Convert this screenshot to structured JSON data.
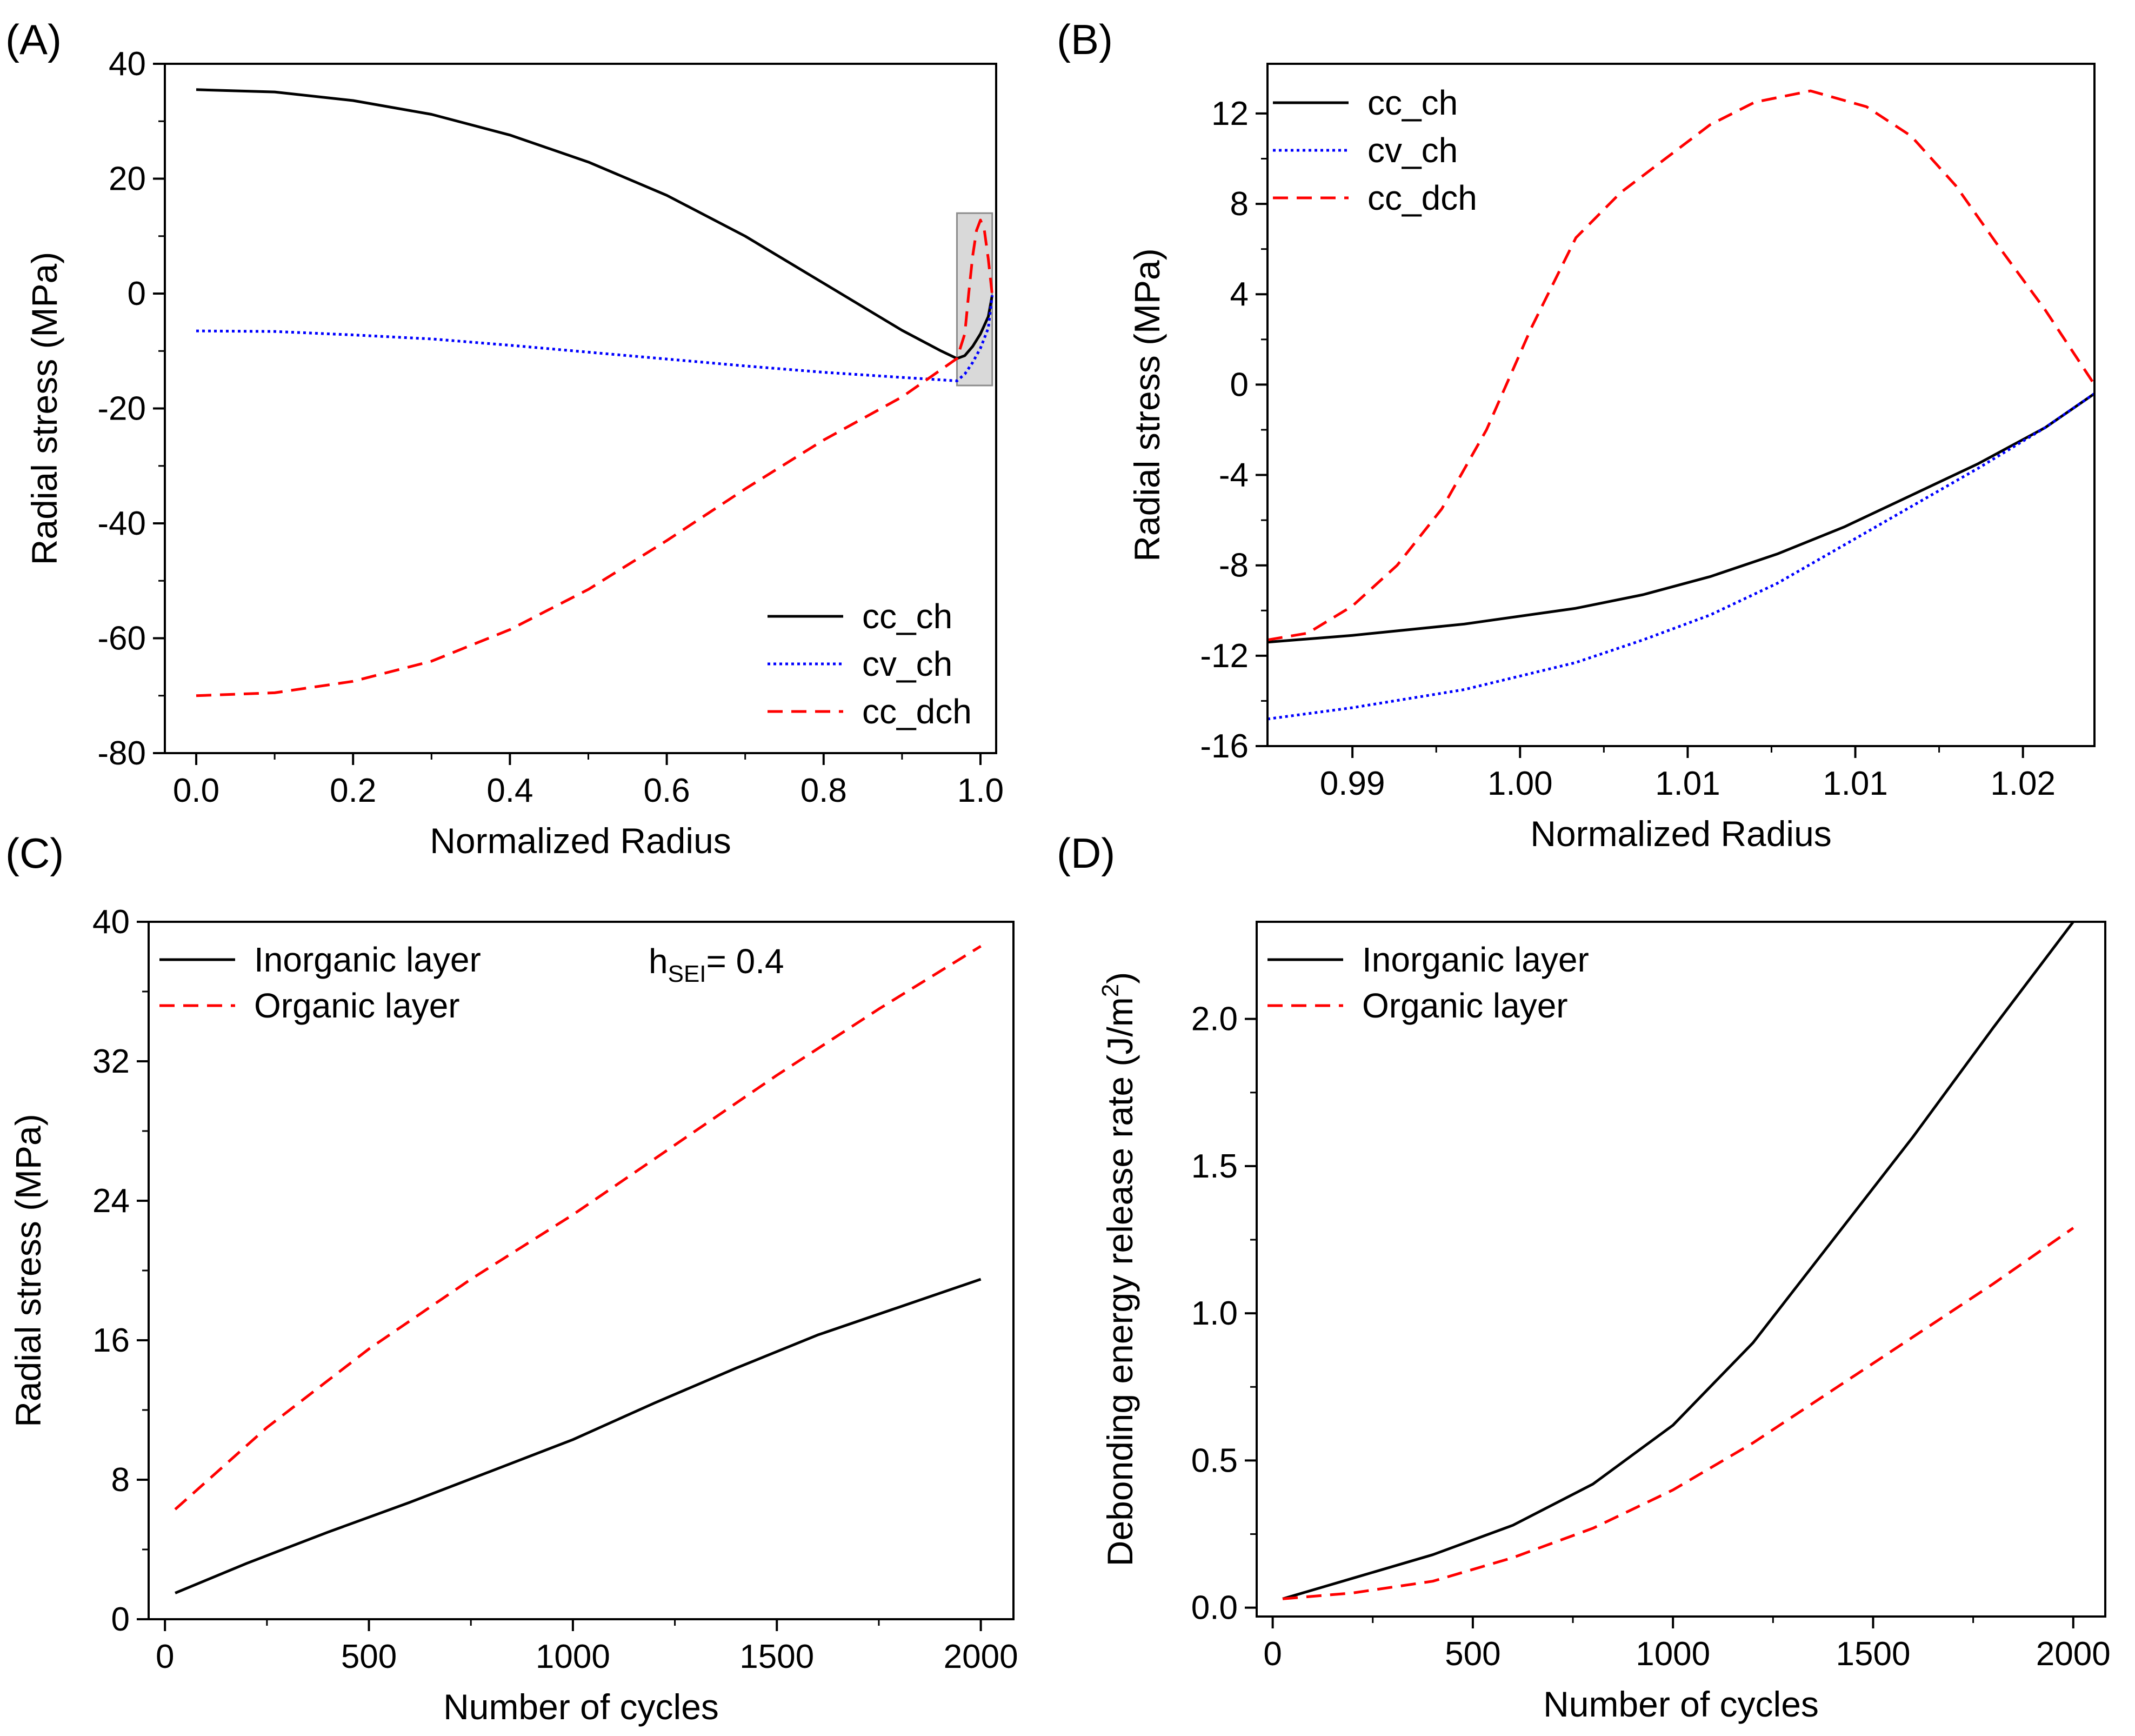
{
  "chart_data": [
    {
      "id": "A",
      "panel_label": "(A)",
      "type": "line",
      "xlabel": "Normalized Radius",
      "ylabel": "Radial stress (MPa)",
      "xlim": [
        -0.04,
        1.02
      ],
      "ylim": [
        -80,
        40
      ],
      "xticks": [
        0.0,
        0.2,
        0.4,
        0.6,
        0.8,
        1.0
      ],
      "xtick_labels": [
        "0.0",
        "0.2",
        "0.4",
        "0.6",
        "0.8",
        "1.0"
      ],
      "yticks": [
        -80,
        -60,
        -40,
        -20,
        0,
        20,
        40
      ],
      "ytick_labels": [
        "-80",
        "-60",
        "-40",
        "-20",
        "0",
        "20",
        "40"
      ],
      "highlight_box": {
        "x": [
          0.97,
          1.015
        ],
        "y": [
          -16,
          14
        ]
      },
      "legend_position": "bottom-right",
      "series": [
        {
          "name": "cc_ch",
          "color": "#000000",
          "dash": "solid",
          "points": [
            [
              0,
              35.5
            ],
            [
              0.1,
              35.1
            ],
            [
              0.2,
              33.6
            ],
            [
              0.3,
              31.2
            ],
            [
              0.4,
              27.6
            ],
            [
              0.5,
              22.9
            ],
            [
              0.6,
              17.1
            ],
            [
              0.7,
              10.0
            ],
            [
              0.8,
              1.8
            ],
            [
              0.9,
              -6.4
            ],
            [
              0.95,
              -10.0
            ],
            [
              0.97,
              -11.3
            ],
            [
              0.98,
              -10.8
            ],
            [
              0.99,
              -9.2
            ],
            [
              1.0,
              -7.0
            ],
            [
              1.01,
              -4.0
            ],
            [
              1.015,
              -0.3
            ]
          ]
        },
        {
          "name": "cv_ch",
          "color": "#0000ff",
          "dash": "dotted",
          "points": [
            [
              0,
              -6.5
            ],
            [
              0.1,
              -6.6
            ],
            [
              0.2,
              -7.2
            ],
            [
              0.3,
              -7.9
            ],
            [
              0.4,
              -9.0
            ],
            [
              0.5,
              -10.2
            ],
            [
              0.6,
              -11.4
            ],
            [
              0.7,
              -12.6
            ],
            [
              0.8,
              -13.7
            ],
            [
              0.9,
              -14.6
            ],
            [
              0.97,
              -15.2
            ],
            [
              0.98,
              -14.0
            ],
            [
              0.99,
              -12.0
            ],
            [
              1.0,
              -9.5
            ],
            [
              1.01,
              -6.0
            ],
            [
              1.015,
              -0.3
            ]
          ]
        },
        {
          "name": "cc_dch",
          "color": "#ff0000",
          "dash": "dashed",
          "points": [
            [
              0,
              -70
            ],
            [
              0.1,
              -69.5
            ],
            [
              0.2,
              -67.5
            ],
            [
              0.3,
              -64
            ],
            [
              0.4,
              -58.5
            ],
            [
              0.5,
              -51.5
            ],
            [
              0.6,
              -43
            ],
            [
              0.7,
              -34
            ],
            [
              0.8,
              -25.5
            ],
            [
              0.9,
              -18
            ],
            [
              0.97,
              -11.3
            ],
            [
              0.98,
              -7
            ],
            [
              0.985,
              0
            ],
            [
              0.99,
              6.5
            ],
            [
              0.995,
              11
            ],
            [
              1.0,
              12.8
            ],
            [
              1.005,
              11
            ],
            [
              1.01,
              6
            ],
            [
              1.015,
              -0.2
            ]
          ]
        }
      ]
    },
    {
      "id": "B",
      "panel_label": "(B)",
      "type": "line",
      "xlabel": "Normalized Radius",
      "ylabel": "Radial stress (MPa)",
      "xlim": [
        0.9862,
        1.0232
      ],
      "ylim": [
        -16,
        14.2
      ],
      "xticks": [
        0.99,
        0.9975,
        1.005,
        1.0125,
        1.02
      ],
      "xtick_labels": [
        "0.99",
        "1.00",
        "1.01",
        "1.01",
        "1.02"
      ],
      "yticks": [
        -16,
        -12,
        -8,
        -4,
        0,
        4,
        8,
        12
      ],
      "ytick_labels": [
        "-16",
        "-12",
        "-8",
        "-4",
        "0",
        "4",
        "8",
        "12"
      ],
      "legend_position": "top-left",
      "series": [
        {
          "name": "cc_ch",
          "color": "#000000",
          "dash": "solid",
          "points": [
            [
              0.9862,
              -11.4
            ],
            [
              0.99,
              -11.1
            ],
            [
              0.995,
              -10.6
            ],
            [
              1.0,
              -9.9
            ],
            [
              1.003,
              -9.3
            ],
            [
              1.006,
              -8.5
            ],
            [
              1.009,
              -7.5
            ],
            [
              1.012,
              -6.3
            ],
            [
              1.015,
              -4.9
            ],
            [
              1.018,
              -3.5
            ],
            [
              1.021,
              -1.9
            ],
            [
              1.0232,
              -0.4
            ]
          ]
        },
        {
          "name": "cv_ch",
          "color": "#0000ff",
          "dash": "dotted",
          "points": [
            [
              0.9862,
              -14.8
            ],
            [
              0.99,
              -14.3
            ],
            [
              0.995,
              -13.5
            ],
            [
              1.0,
              -12.3
            ],
            [
              1.003,
              -11.3
            ],
            [
              1.006,
              -10.2
            ],
            [
              1.009,
              -8.8
            ],
            [
              1.012,
              -7.1
            ],
            [
              1.015,
              -5.4
            ],
            [
              1.018,
              -3.7
            ],
            [
              1.021,
              -1.9
            ],
            [
              1.0232,
              -0.4
            ]
          ]
        },
        {
          "name": "cc_dch",
          "color": "#ff0000",
          "dash": "dashed",
          "points": [
            [
              0.9862,
              -11.3
            ],
            [
              0.988,
              -11
            ],
            [
              0.99,
              -9.8
            ],
            [
              0.992,
              -8
            ],
            [
              0.994,
              -5.5
            ],
            [
              0.996,
              -2
            ],
            [
              0.998,
              2.5
            ],
            [
              1.0,
              6.5
            ],
            [
              1.002,
              8.5
            ],
            [
              1.004,
              10.0
            ],
            [
              1.006,
              11.5
            ],
            [
              1.008,
              12.5
            ],
            [
              1.0105,
              13.0
            ],
            [
              1.013,
              12.3
            ],
            [
              1.015,
              11.0
            ],
            [
              1.017,
              8.8
            ],
            [
              1.019,
              6.0
            ],
            [
              1.021,
              3.3
            ],
            [
              1.0232,
              0
            ]
          ]
        }
      ]
    },
    {
      "id": "C",
      "panel_label": "(C)",
      "type": "line",
      "xlabel": "Number of cycles",
      "ylabel": "Radial stress (MPa)",
      "xlim": [
        -40,
        2080
      ],
      "ylim": [
        0,
        40
      ],
      "xticks": [
        0,
        500,
        1000,
        1500,
        2000
      ],
      "xtick_labels": [
        "0",
        "500",
        "1000",
        "1500",
        "2000"
      ],
      "yticks": [
        0,
        8,
        16,
        24,
        32,
        40
      ],
      "ytick_labels": [
        "0",
        "8",
        "16",
        "24",
        "32",
        "40"
      ],
      "legend_position": "top-left",
      "annotation": {
        "main": "h",
        "sub": "SEI",
        "rest": "= 0.4"
      },
      "series": [
        {
          "name": "Inorganic layer",
          "color": "#000000",
          "dash": "solid",
          "points": [
            [
              25,
              1.5
            ],
            [
              200,
              3.2
            ],
            [
              400,
              5.0
            ],
            [
              600,
              6.7
            ],
            [
              800,
              8.5
            ],
            [
              1000,
              10.3
            ],
            [
              1200,
              12.4
            ],
            [
              1400,
              14.4
            ],
            [
              1600,
              16.3
            ],
            [
              1800,
              17.9
            ],
            [
              2000,
              19.5
            ]
          ]
        },
        {
          "name": "Organic layer",
          "color": "#ff0000",
          "dash": "dashed",
          "points": [
            [
              25,
              6.3
            ],
            [
              250,
              11.0
            ],
            [
              500,
              15.5
            ],
            [
              750,
              19.5
            ],
            [
              1000,
              23.2
            ],
            [
              1250,
              27.2
            ],
            [
              1500,
              31.2
            ],
            [
              1750,
              35.0
            ],
            [
              2000,
              38.6
            ]
          ]
        }
      ]
    },
    {
      "id": "D",
      "panel_label": "(D)",
      "type": "line",
      "xlabel": "Number of cycles",
      "ylabel_main": "Debonding energy release rate (J/m",
      "ylabel_sup": "2",
      "ylabel_tail": ")",
      "xlim": [
        -40,
        2080
      ],
      "ylim": [
        -0.03,
        2.33
      ],
      "xticks": [
        0,
        500,
        1000,
        1500,
        2000
      ],
      "xtick_labels": [
        "0",
        "500",
        "1000",
        "1500",
        "2000"
      ],
      "yticks": [
        0,
        0.5,
        1.0,
        1.5,
        2.0
      ],
      "ytick_labels": [
        "0.0",
        "0.5",
        "1.0",
        "1.5",
        "2.0"
      ],
      "legend_position": "top-left",
      "series": [
        {
          "name": "Inorganic layer",
          "color": "#000000",
          "dash": "solid",
          "points": [
            [
              25,
              0.03
            ],
            [
              200,
              0.1
            ],
            [
              400,
              0.18
            ],
            [
              600,
              0.28
            ],
            [
              800,
              0.42
            ],
            [
              1000,
              0.62
            ],
            [
              1200,
              0.9
            ],
            [
              1400,
              1.25
            ],
            [
              1600,
              1.6
            ],
            [
              1800,
              1.97
            ],
            [
              2000,
              2.33
            ]
          ]
        },
        {
          "name": "Organic layer",
          "color": "#ff0000",
          "dash": "dashed",
          "points": [
            [
              25,
              0.03
            ],
            [
              200,
              0.05
            ],
            [
              400,
              0.09
            ],
            [
              600,
              0.17
            ],
            [
              800,
              0.27
            ],
            [
              1000,
              0.4
            ],
            [
              1200,
              0.56
            ],
            [
              1400,
              0.74
            ],
            [
              1600,
              0.92
            ],
            [
              1800,
              1.1
            ],
            [
              2000,
              1.29
            ]
          ]
        }
      ]
    }
  ]
}
